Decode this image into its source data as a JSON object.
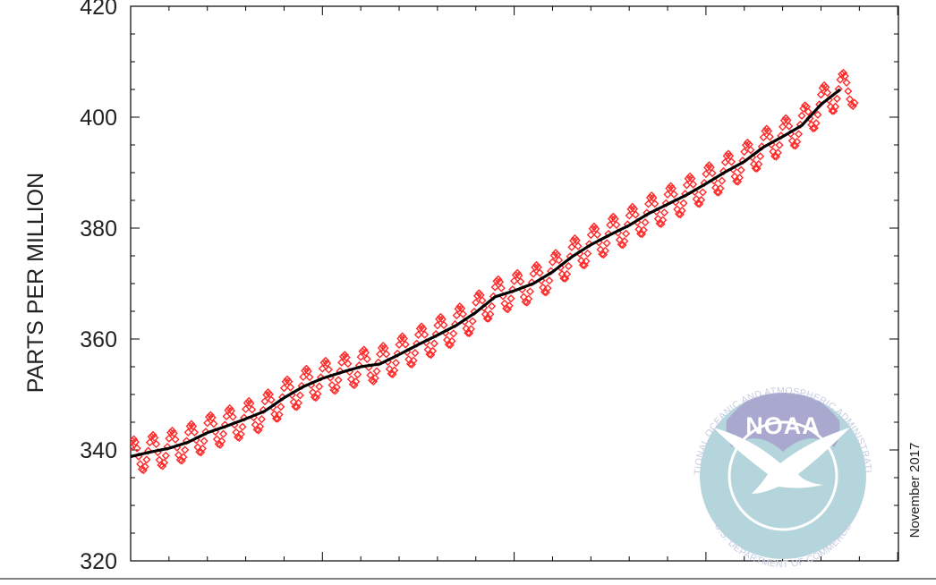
{
  "chart_data": {
    "type": "line",
    "title": "",
    "xlabel": "",
    "ylabel": "PARTS PER MILLION",
    "ylim": [
      320,
      420
    ],
    "y_ticks": [
      320,
      340,
      360,
      380,
      400,
      420
    ],
    "y_tick_labels": [
      "320",
      "340",
      "360",
      "380",
      "400",
      "420"
    ],
    "x_range": [
      1980,
      2020
    ],
    "x_major_ticks": [
      1980,
      1990,
      2000,
      2010,
      2020
    ],
    "grid": false,
    "series": [
      {
        "color": "#ff2a2a",
        "marker": "diamond",
        "x": [
          1980,
          1981,
          1982,
          1983,
          1984,
          1985,
          1986,
          1987,
          1988,
          1989,
          1990,
          1991,
          1992,
          1993,
          1994,
          1995,
          1996,
          1997,
          1998,
          1999,
          2000,
          2001,
          2002,
          2003,
          2004,
          2005,
          2006,
          2007,
          2008,
          2009,
          2010,
          2011,
          2012,
          2013,
          2014,
          2015,
          2016,
          2017
        ],
        "y": [
          338.8,
          339.6,
          340.3,
          341.4,
          343.1,
          344.3,
          345.6,
          347.0,
          349.4,
          351.4,
          352.9,
          354.0,
          355.0,
          355.5,
          357.2,
          359.0,
          360.7,
          362.5,
          364.8,
          367.6,
          368.7,
          370.0,
          372.1,
          374.8,
          377.0,
          378.8,
          380.5,
          382.6,
          384.3,
          386.0,
          388.0,
          390.1,
          392.0,
          394.6,
          396.5,
          398.5,
          402.3,
          405.0
        ],
        "seasonal_amplitude": 3.0
      },
      {
        "color": "#000000",
        "x": [
          1980,
          1981,
          1982,
          1983,
          1984,
          1985,
          1986,
          1987,
          1988,
          1989,
          1990,
          1991,
          1992,
          1993,
          1994,
          1995,
          1996,
          1997,
          1998,
          1999,
          2000,
          2001,
          2002,
          2003,
          2004,
          2005,
          2006,
          2007,
          2008,
          2009,
          2010,
          2011,
          2012,
          2013,
          2014,
          2015,
          2016,
          2017
        ],
        "y": [
          338.8,
          339.6,
          340.3,
          341.4,
          343.1,
          344.3,
          345.6,
          347.0,
          349.4,
          351.4,
          352.9,
          354.0,
          355.0,
          355.5,
          357.2,
          359.0,
          360.7,
          362.5,
          364.8,
          367.6,
          368.7,
          370.0,
          372.1,
          374.8,
          377.0,
          378.8,
          380.5,
          382.6,
          384.3,
          386.0,
          388.0,
          390.1,
          392.0,
          394.6,
          396.5,
          398.5,
          402.3,
          405.0
        ]
      }
    ]
  },
  "side_note": "November 2017",
  "logo": {
    "word": "NOAA",
    "ring_top": "NATIONAL OCEANIC AND ATMOSPHERIC ADMINISTRATION",
    "ring_bottom": "U.S. DEPARTMENT OF COMMERCE",
    "sky_color": "#a9a8cf",
    "sea_color": "#b4d5dc"
  }
}
